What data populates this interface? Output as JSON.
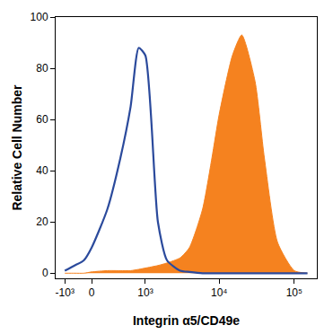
{
  "chart_data": {
    "type": "line",
    "x_label": "Integrin α5/CD49e",
    "y_label": "Relative Cell Number",
    "x": [
      -1000,
      -500,
      -200,
      0,
      200,
      400,
      600,
      800,
      1000,
      1500,
      2000,
      3000,
      4000,
      6000,
      8000,
      10000,
      15000,
      20000,
      30000,
      40000,
      60000,
      100000,
      150000
    ],
    "series": [
      {
        "type": "line",
        "color": "#2b4a9c",
        "values": [
          1,
          3,
          5,
          10,
          25,
          45,
          65,
          88,
          85,
          20,
          5,
          1,
          0.5,
          0,
          0,
          0,
          0,
          0,
          0,
          0,
          0,
          0,
          0
        ]
      },
      {
        "type": "area",
        "color": "#f5821f",
        "values": [
          0,
          0,
          0,
          0.5,
          1,
          1,
          1,
          1.5,
          2,
          3,
          4,
          6,
          10,
          25,
          45,
          62,
          85,
          93,
          75,
          45,
          12,
          1,
          0
        ]
      }
    ],
    "xlim": [
      -1800,
      200000
    ],
    "xticks": [
      {
        "value": -1000,
        "label": "-10³"
      },
      0,
      {
        "value": 1000,
        "label": "10³"
      },
      {
        "value": 10000,
        "label": "10⁴"
      },
      {
        "value": 100000,
        "label": "10⁵"
      }
    ],
    "ylim": [
      -2,
      100
    ],
    "yticks": [
      0,
      20,
      40,
      60,
      80,
      100
    ],
    "grid": false
  }
}
